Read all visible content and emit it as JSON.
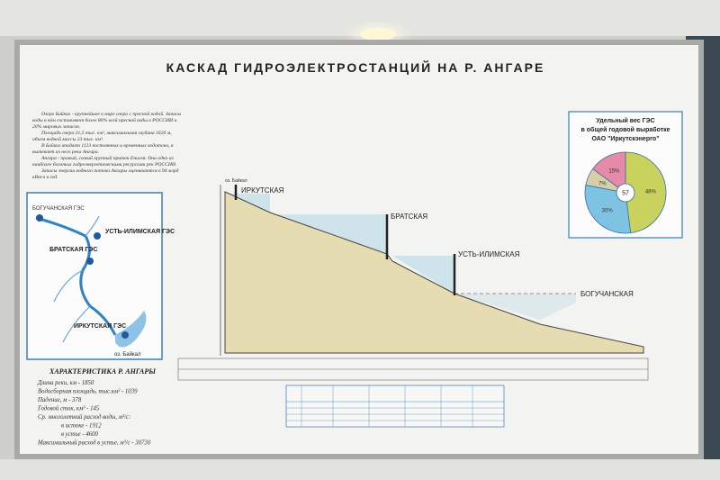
{
  "title": "КАСКАД ГИДРОЭЛЕКТРОСТАНЦИЙ НА Р. АНГАРЕ",
  "intro": [
    "Озеро Байкал - крупнейшее в мире озеро с пресной водой. Запасы воды в нём составляют более 80% всей пресной воды в РОССИИ и 20% мировых запасов.",
    "Площадь озера 31,5 тыс. км², максимальная глубина 1620 м, объем водной массы 23 тыс. км³.",
    "В Байкал впадает 1123 постоянных и временных водотока, а вытекает из него река Ангара.",
    "Ангара - правый, самый крупный приток Енисея. Она одна из наиболее богатых гидроэнергетическими ресурсами рек РОССИИ.",
    "Запасы энергии водного потока Ангары оцениваются в 94 млрд кВт·ч в год."
  ],
  "map": {
    "labels": [
      "БОГУЧАНСКАЯ ГЭС",
      "УСТЬ-ИЛИМСКАЯ ГЭС",
      "БРАТСКАЯ ГЭС",
      "ИРКУТСКАЯ ГЭС",
      "оз. Байкал"
    ]
  },
  "profile": {
    "stations": [
      "ИРКУТСКАЯ",
      "БРАТСКАЯ",
      "УСТЬ-ИЛИМСКАЯ",
      "БОГУЧАНСКАЯ"
    ],
    "source": "оз. Байкал"
  },
  "pie": {
    "title": [
      "Удельный вес ГЭС",
      "в общей годовой выработке",
      "ОАО \"Иркутскэнерго\""
    ],
    "center": "57",
    "slices": [
      {
        "value": 48,
        "label": "48%",
        "color": "#c8d25c"
      },
      {
        "value": 30,
        "label": "30%",
        "color": "#7fc3e2"
      },
      {
        "value": 7,
        "label": "7%",
        "color": "#d8cfa8"
      },
      {
        "value": 15,
        "label": "15%",
        "color": "#e58aa9"
      }
    ]
  },
  "characteristics": {
    "heading": "ХАРАКТЕРИСТИКА Р. АНГАРЫ",
    "lines": [
      "Длина реки, км - 1850",
      "Водосборная площадь, тыс.км² - 1039",
      "Падение, м - 378",
      "Годовой сток, км³ - 145",
      "Ср. многолетний расход воды, м³/с:",
      "в истоке - 1912",
      "в устье - 4600",
      "Максимальный расход в устье, м³/с - 30730"
    ]
  }
}
